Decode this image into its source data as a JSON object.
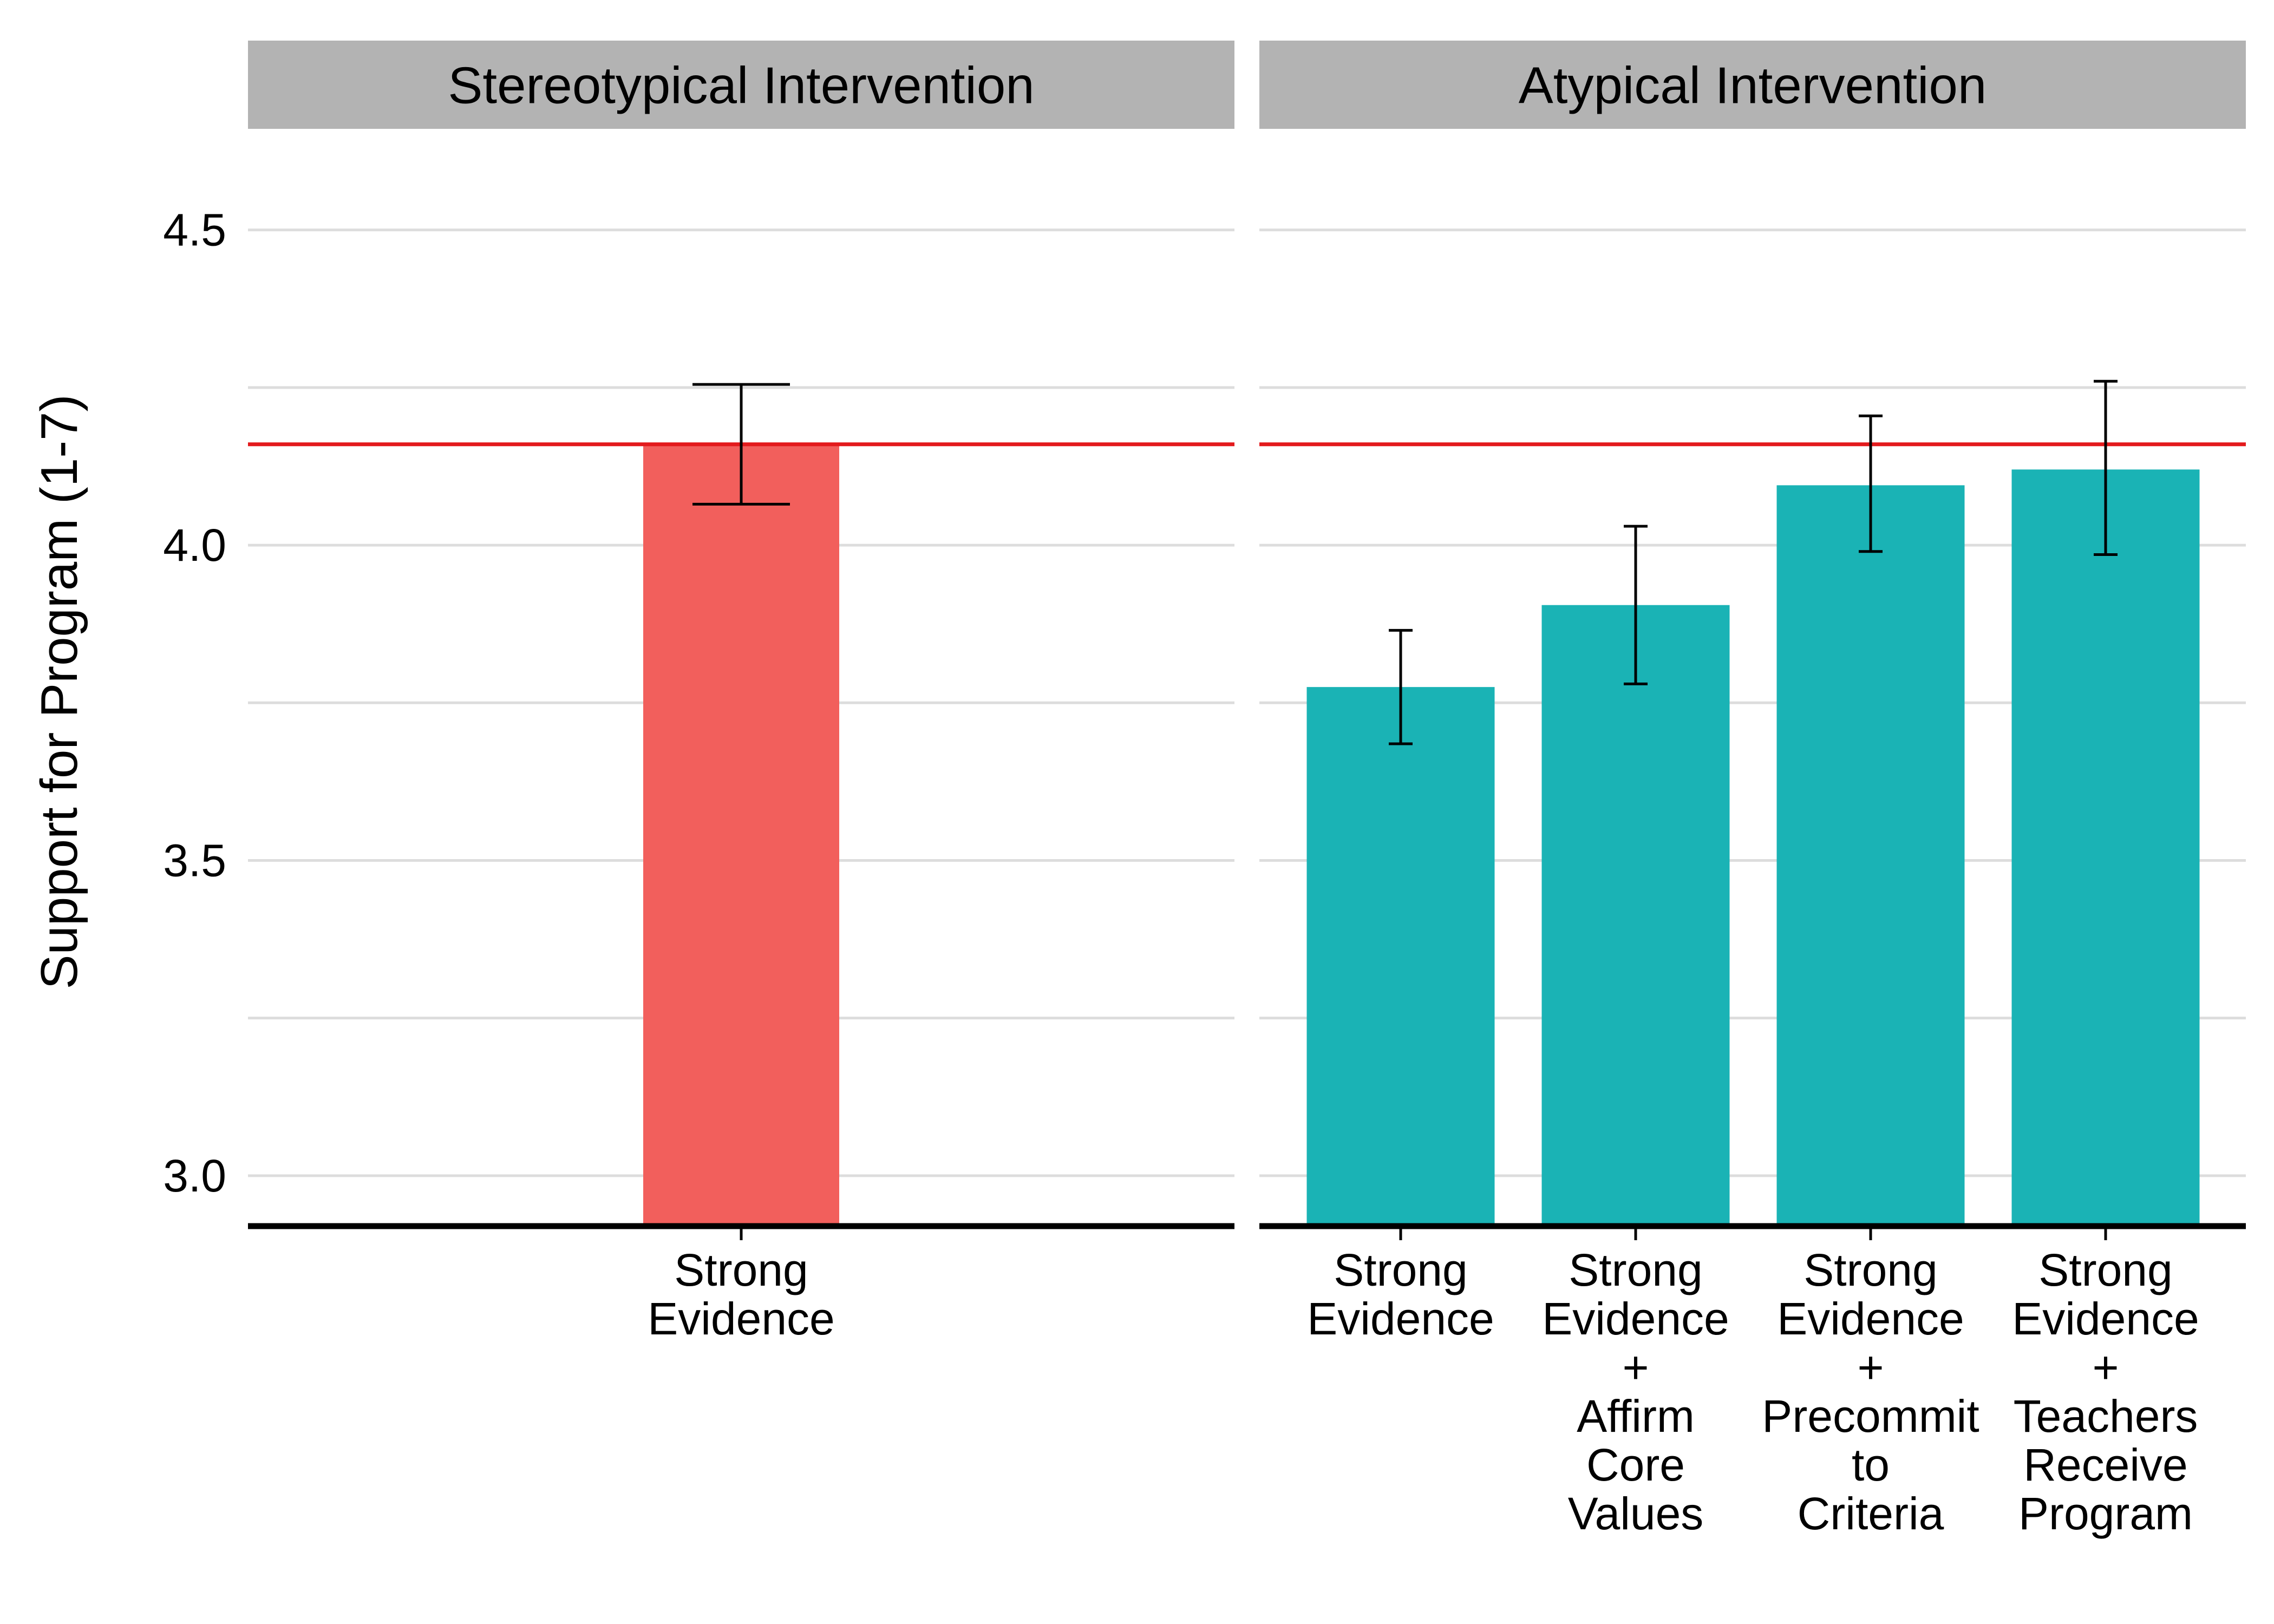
{
  "chart_data": {
    "type": "bar",
    "ylabel": "Support for Program (1-7)",
    "xlabel": "",
    "ylim": [
      2.92,
      4.65
    ],
    "yticks": [
      3.0,
      3.5,
      4.0,
      4.5
    ],
    "ytick_labels": [
      "3.0",
      "3.5",
      "4.0",
      "4.5"
    ],
    "grid": true,
    "reference_line": {
      "value": 4.16,
      "color": "#e31a1c"
    },
    "colors": {
      "stereotypical": "#f25f5c",
      "atypical": "#1ab3b5",
      "strip_bg": "#b3b3b3",
      "grid": "#dddddd"
    },
    "panels": [
      {
        "title": "Stereotypical Intervention",
        "color": "#f25f5c",
        "bars": [
          {
            "label": [
              "Strong",
              "Evidence"
            ],
            "value": 4.16,
            "ci": [
              4.065,
              4.255
            ]
          }
        ]
      },
      {
        "title": "Atypical Intervention",
        "color": "#1ab3b5",
        "bars": [
          {
            "label": [
              "Strong",
              "Evidence"
            ],
            "value": 3.775,
            "ci": [
              3.685,
              3.865
            ]
          },
          {
            "label": [
              "Strong",
              "Evidence",
              "+",
              "Affirm",
              "Core",
              "Values"
            ],
            "value": 3.905,
            "ci": [
              3.78,
              4.03
            ]
          },
          {
            "label": [
              "Strong",
              "Evidence",
              "+",
              "Precommit",
              "to",
              "Criteria"
            ],
            "value": 4.095,
            "ci": [
              3.99,
              4.205
            ]
          },
          {
            "label": [
              "Strong",
              "Evidence",
              "+",
              "Teachers",
              "Receive",
              "Program"
            ],
            "value": 4.12,
            "ci": [
              3.985,
              4.26
            ]
          }
        ]
      }
    ]
  }
}
